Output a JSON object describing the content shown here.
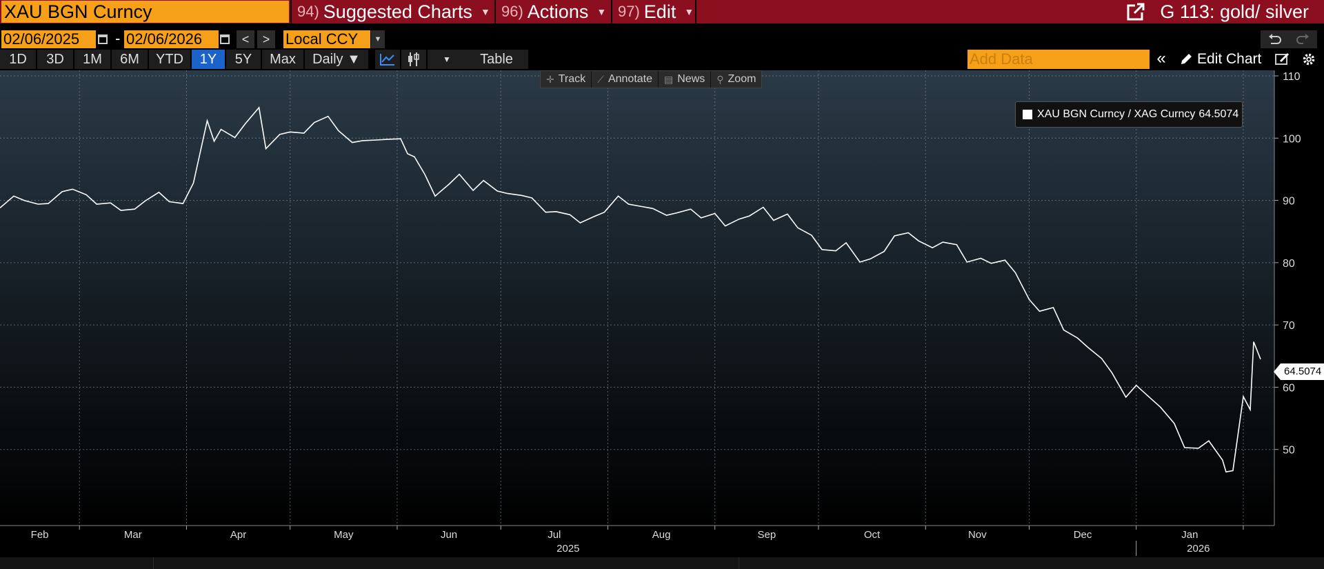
{
  "header": {
    "security": "XAU BGN Curncy",
    "menus": [
      {
        "num": "94)",
        "label": "Suggested Charts"
      },
      {
        "num": "96)",
        "label": "Actions"
      },
      {
        "num": "97)",
        "label": "Edit"
      }
    ],
    "page_title": "G 113: gold/ silver"
  },
  "controls": {
    "start_date": "02/06/2025",
    "end_date": "02/06/2026",
    "date_separator": "-",
    "currency": "Local CCY",
    "periods": [
      "1D",
      "3D",
      "1M",
      "6M",
      "YTD",
      "1Y",
      "5Y",
      "Max"
    ],
    "active_period": "1Y",
    "frequency": "Daily ▼",
    "table_label": "Table",
    "add_data_placeholder": "Add Data",
    "edit_chart_label": "Edit Chart"
  },
  "chart_toolbar": [
    {
      "icon": "track-icon",
      "label": "Track"
    },
    {
      "icon": "annotate-icon",
      "label": "Annotate"
    },
    {
      "icon": "news-icon",
      "label": "News"
    },
    {
      "icon": "zoom-icon",
      "label": "Zoom"
    }
  ],
  "chart_data": {
    "type": "line",
    "title": "",
    "xlabel": "",
    "ylabel": "",
    "ylim": [
      40,
      110
    ],
    "xlim": [
      "2025-02-06",
      "2026-02-06"
    ],
    "yticks": [
      50,
      60,
      70,
      80,
      90,
      100,
      110
    ],
    "xtick_labels": [
      "Feb",
      "Mar",
      "Apr",
      "May",
      "Jun",
      "Jul",
      "Aug",
      "Sep",
      "Oct",
      "Nov",
      "Dec",
      "Jan"
    ],
    "year_labels": [
      "2025",
      "2026"
    ],
    "grid": true,
    "legend_position": "top-right",
    "line_color": "#ffffff",
    "background_top": "#2a3a47",
    "background_bottom": "#000000",
    "series": [
      {
        "name": "XAU BGN Curncy / XAG Curncy",
        "last_value": "64.5074",
        "points": [
          [
            "2025-02-06",
            88.8
          ],
          [
            "2025-02-10",
            90.7
          ],
          [
            "2025-02-13",
            90.0
          ],
          [
            "2025-02-17",
            89.4
          ],
          [
            "2025-02-20",
            89.5
          ],
          [
            "2025-02-24",
            91.4
          ],
          [
            "2025-02-27",
            91.8
          ],
          [
            "2025-03-03",
            90.9
          ],
          [
            "2025-03-06",
            89.4
          ],
          [
            "2025-03-10",
            89.6
          ],
          [
            "2025-03-13",
            88.4
          ],
          [
            "2025-03-17",
            88.6
          ],
          [
            "2025-03-20",
            89.9
          ],
          [
            "2025-03-24",
            91.3
          ],
          [
            "2025-03-27",
            89.8
          ],
          [
            "2025-03-31",
            89.5
          ],
          [
            "2025-04-03",
            92.8
          ],
          [
            "2025-04-07",
            102.8
          ],
          [
            "2025-04-09",
            99.5
          ],
          [
            "2025-04-11",
            101.4
          ],
          [
            "2025-04-15",
            100.1
          ],
          [
            "2025-04-18",
            102.3
          ],
          [
            "2025-04-22",
            104.9
          ],
          [
            "2025-04-24",
            98.3
          ],
          [
            "2025-04-28",
            100.6
          ],
          [
            "2025-05-01",
            101.0
          ],
          [
            "2025-05-05",
            100.8
          ],
          [
            "2025-05-08",
            102.5
          ],
          [
            "2025-05-12",
            103.5
          ],
          [
            "2025-05-15",
            101.2
          ],
          [
            "2025-05-19",
            99.3
          ],
          [
            "2025-05-22",
            99.6
          ],
          [
            "2025-05-26",
            99.7
          ],
          [
            "2025-05-29",
            99.8
          ],
          [
            "2025-06-02",
            99.9
          ],
          [
            "2025-06-04",
            97.5
          ],
          [
            "2025-06-06",
            97.0
          ],
          [
            "2025-06-09",
            94.2
          ],
          [
            "2025-06-12",
            90.7
          ],
          [
            "2025-06-16",
            92.6
          ],
          [
            "2025-06-19",
            94.2
          ],
          [
            "2025-06-23",
            91.6
          ],
          [
            "2025-06-26",
            93.2
          ],
          [
            "2025-06-30",
            91.5
          ],
          [
            "2025-07-03",
            91.1
          ],
          [
            "2025-07-07",
            90.8
          ],
          [
            "2025-07-10",
            90.4
          ],
          [
            "2025-07-14",
            88.1
          ],
          [
            "2025-07-17",
            88.2
          ],
          [
            "2025-07-21",
            87.7
          ],
          [
            "2025-07-24",
            86.4
          ],
          [
            "2025-07-28",
            87.4
          ],
          [
            "2025-07-31",
            88.1
          ],
          [
            "2025-08-04",
            90.7
          ],
          [
            "2025-08-07",
            89.4
          ],
          [
            "2025-08-11",
            89.0
          ],
          [
            "2025-08-14",
            88.7
          ],
          [
            "2025-08-18",
            87.6
          ],
          [
            "2025-08-21",
            88.0
          ],
          [
            "2025-08-25",
            88.6
          ],
          [
            "2025-08-28",
            87.2
          ],
          [
            "2025-09-01",
            87.9
          ],
          [
            "2025-09-04",
            85.9
          ],
          [
            "2025-09-08",
            87.0
          ],
          [
            "2025-09-11",
            87.5
          ],
          [
            "2025-09-15",
            88.9
          ],
          [
            "2025-09-18",
            86.8
          ],
          [
            "2025-09-22",
            87.8
          ],
          [
            "2025-09-25",
            85.6
          ],
          [
            "2025-09-29",
            84.4
          ],
          [
            "2025-10-02",
            82.1
          ],
          [
            "2025-10-06",
            81.9
          ],
          [
            "2025-10-09",
            83.2
          ],
          [
            "2025-10-13",
            80.1
          ],
          [
            "2025-10-16",
            80.6
          ],
          [
            "2025-10-20",
            81.8
          ],
          [
            "2025-10-23",
            84.3
          ],
          [
            "2025-10-27",
            84.8
          ],
          [
            "2025-10-30",
            83.5
          ],
          [
            "2025-11-03",
            82.4
          ],
          [
            "2025-11-06",
            83.3
          ],
          [
            "2025-11-10",
            82.9
          ],
          [
            "2025-11-13",
            80.1
          ],
          [
            "2025-11-17",
            80.7
          ],
          [
            "2025-11-20",
            79.9
          ],
          [
            "2025-11-24",
            80.4
          ],
          [
            "2025-11-27",
            78.4
          ],
          [
            "2025-12-01",
            74.1
          ],
          [
            "2025-12-04",
            72.2
          ],
          [
            "2025-12-08",
            72.8
          ],
          [
            "2025-12-11",
            69.2
          ],
          [
            "2025-12-15",
            67.9
          ],
          [
            "2025-12-18",
            66.4
          ],
          [
            "2025-12-22",
            64.6
          ],
          [
            "2025-12-25",
            62.3
          ],
          [
            "2025-12-29",
            58.4
          ],
          [
            "2026-01-01",
            60.3
          ],
          [
            "2026-01-05",
            58.3
          ],
          [
            "2026-01-08",
            56.8
          ],
          [
            "2026-01-12",
            54.2
          ],
          [
            "2026-01-15",
            50.3
          ],
          [
            "2026-01-19",
            50.2
          ],
          [
            "2026-01-22",
            51.4
          ],
          [
            "2026-01-26",
            48.3
          ],
          [
            "2026-01-27",
            46.4
          ],
          [
            "2026-01-29",
            46.6
          ],
          [
            "2026-02-01",
            58.5
          ],
          [
            "2026-02-03",
            56.4
          ],
          [
            "2026-02-04",
            67.3
          ],
          [
            "2026-02-06",
            64.5
          ]
        ]
      }
    ]
  }
}
